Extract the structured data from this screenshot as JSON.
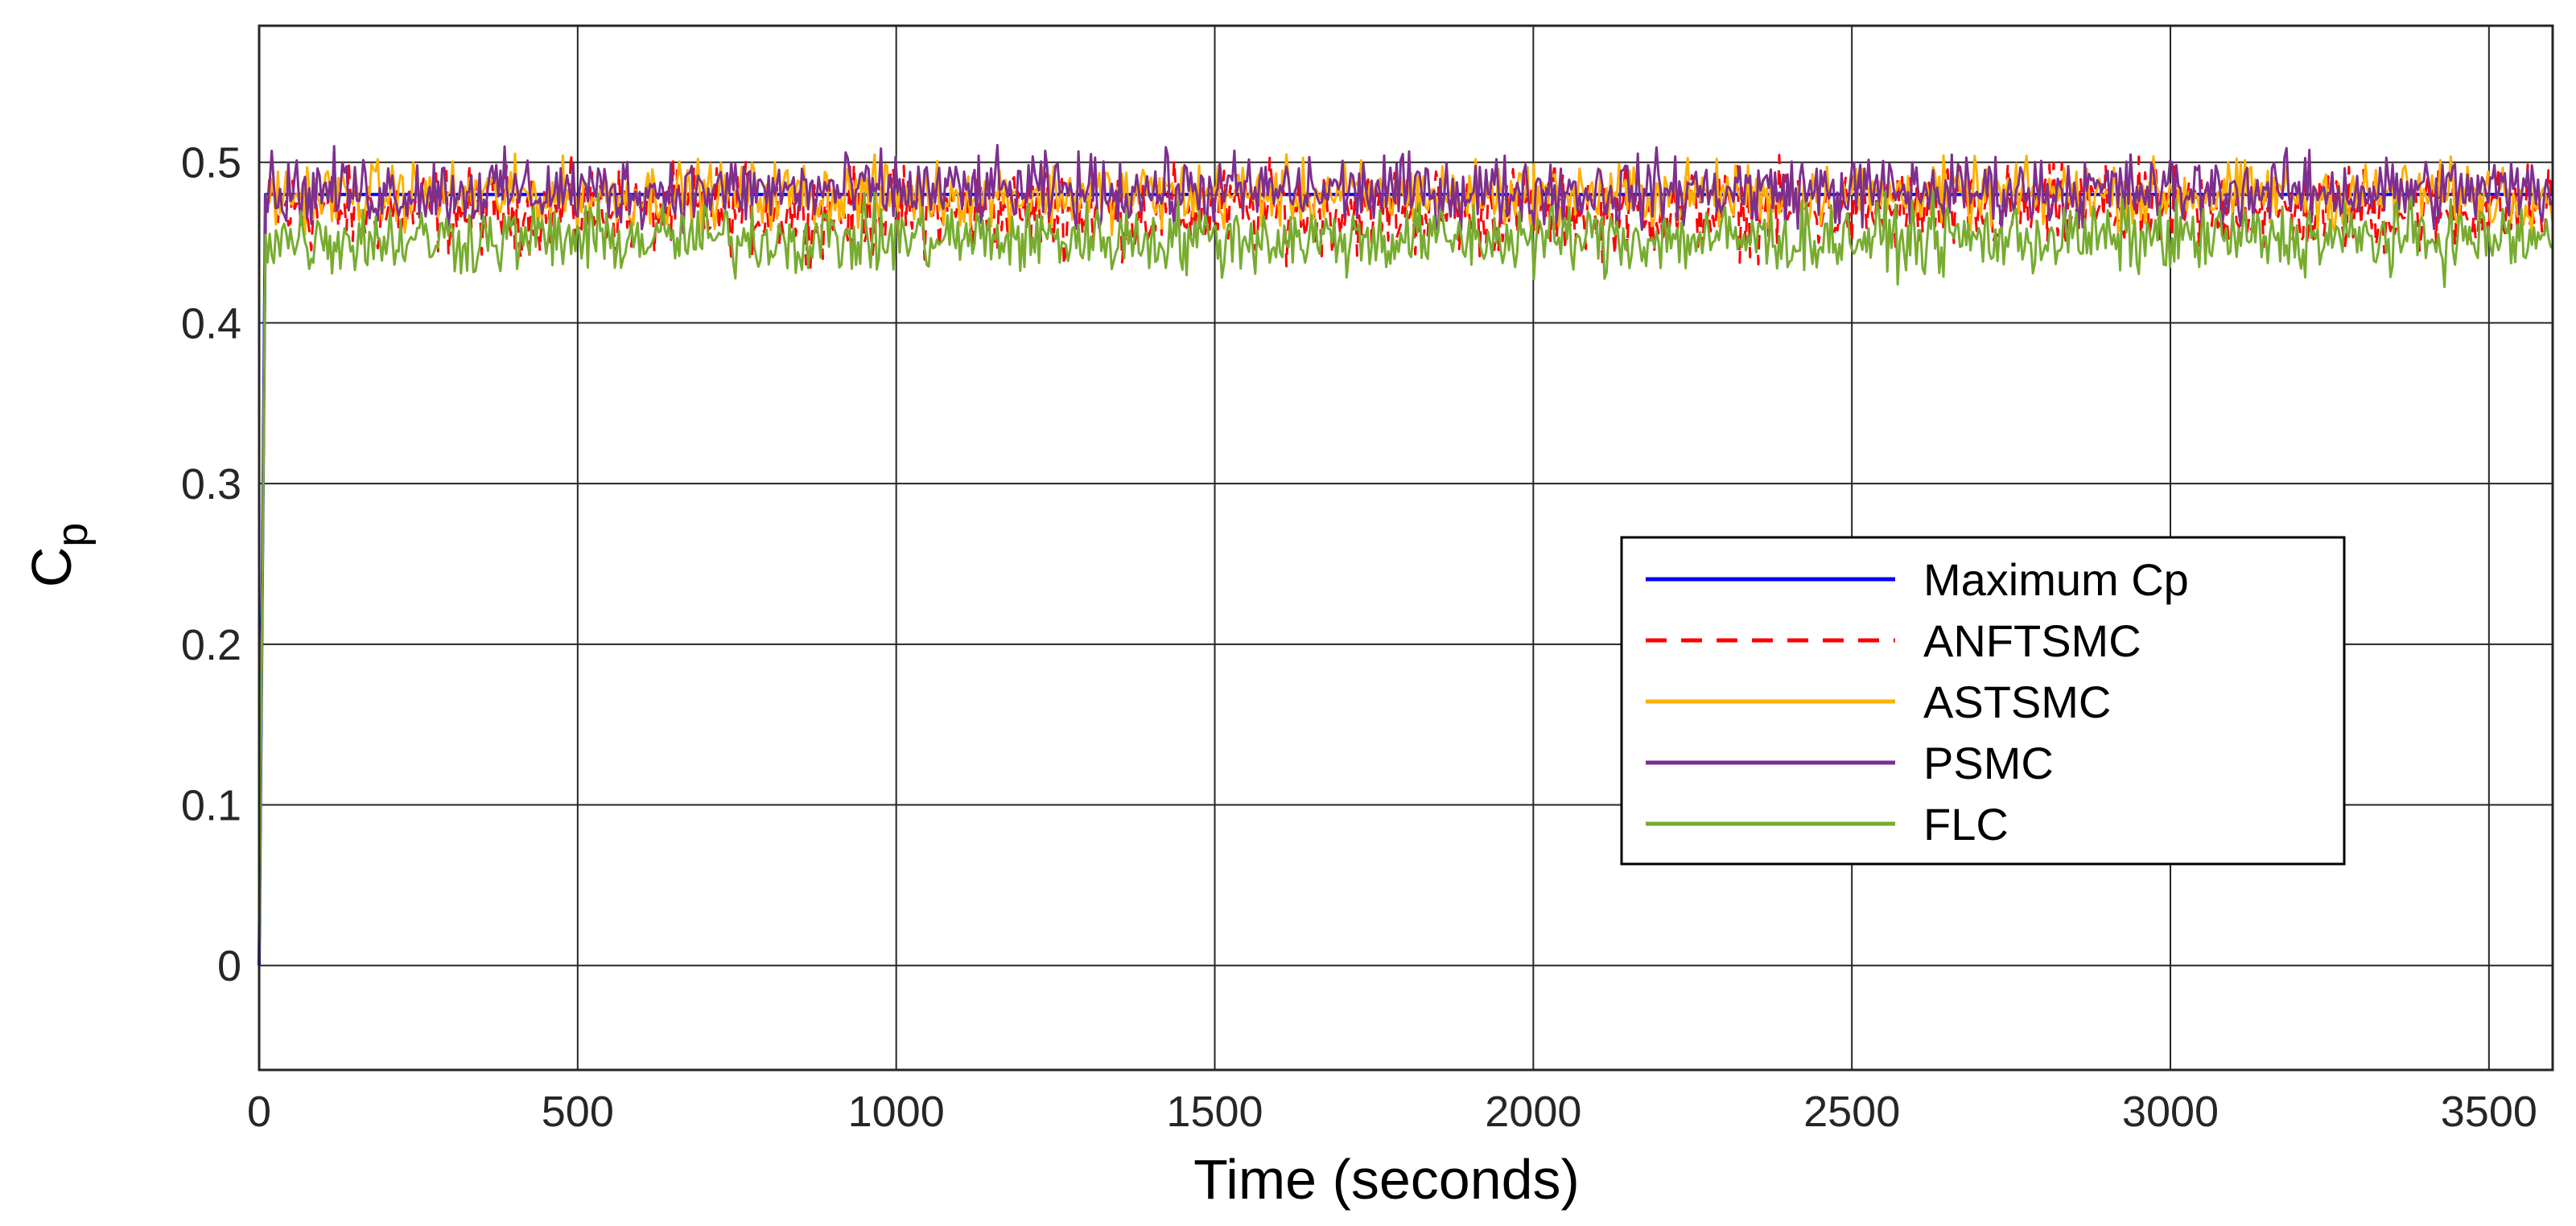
{
  "chart_data": {
    "type": "line",
    "xlabel": "Time (seconds)",
    "ylabel": "C",
    "ylabel_subscript": "p",
    "xlim": [
      0,
      3600
    ],
    "ylim": [
      -0.065,
      0.585
    ],
    "xticks": [
      0,
      500,
      1000,
      1500,
      2000,
      2500,
      3000,
      3500
    ],
    "yticks": [
      0,
      0.1,
      0.2,
      0.3,
      0.4,
      0.5
    ],
    "xtick_labels": [
      "0",
      "500",
      "1000",
      "1500",
      "2000",
      "2500",
      "3000",
      "3500"
    ],
    "ytick_labels": [
      "0",
      "0.1",
      "0.2",
      "0.3",
      "0.4",
      "0.5"
    ],
    "grid": true,
    "legend_position": "right",
    "series": [
      {
        "name": "Maximum Cp",
        "color": "#0000FF",
        "style": "solid",
        "x": [
          0,
          10,
          3600
        ],
        "y": [
          0.0,
          0.48,
          0.48
        ]
      },
      {
        "name": "ANFTSMC",
        "color": "#FF0000",
        "style": "dashed",
        "x": [
          0,
          10,
          300,
          600,
          900,
          1200,
          1500,
          1800,
          2100,
          2400,
          2700,
          3000,
          3300,
          3600
        ],
        "y": [
          0.0,
          0.47,
          0.47,
          0.47,
          0.47,
          0.47,
          0.47,
          0.47,
          0.47,
          0.47,
          0.47,
          0.47,
          0.47,
          0.47
        ],
        "band": [
          0.43,
          0.51
        ]
      },
      {
        "name": "ASTSMC",
        "color": "#FFB000",
        "style": "solid",
        "x": [
          0,
          10,
          300,
          600,
          900,
          1200,
          1500,
          1800,
          2100,
          2400,
          2700,
          3000,
          3300,
          3600
        ],
        "y": [
          0.0,
          0.48,
          0.48,
          0.48,
          0.48,
          0.48,
          0.48,
          0.48,
          0.48,
          0.48,
          0.48,
          0.48,
          0.48,
          0.48
        ],
        "band": [
          0.45,
          0.51
        ]
      },
      {
        "name": "PSMC",
        "color": "#7E2F8E",
        "style": "solid",
        "x": [
          0,
          10,
          300,
          600,
          900,
          1200,
          1500,
          1800,
          2100,
          2400,
          2700,
          3000,
          3300,
          3600
        ],
        "y": [
          0.0,
          0.48,
          0.48,
          0.48,
          0.48,
          0.48,
          0.48,
          0.48,
          0.48,
          0.48,
          0.48,
          0.48,
          0.48,
          0.48
        ],
        "band": [
          0.45,
          0.515
        ]
      },
      {
        "name": "FLC",
        "color": "#77AC30",
        "style": "solid",
        "x": [
          0,
          10,
          300,
          600,
          900,
          1200,
          1500,
          1800,
          2100,
          2400,
          2700,
          3000,
          3300,
          3600
        ],
        "y": [
          0.0,
          0.455,
          0.455,
          0.455,
          0.455,
          0.455,
          0.455,
          0.455,
          0.455,
          0.455,
          0.455,
          0.455,
          0.455,
          0.455
        ],
        "band": [
          0.42,
          0.485
        ]
      }
    ]
  }
}
